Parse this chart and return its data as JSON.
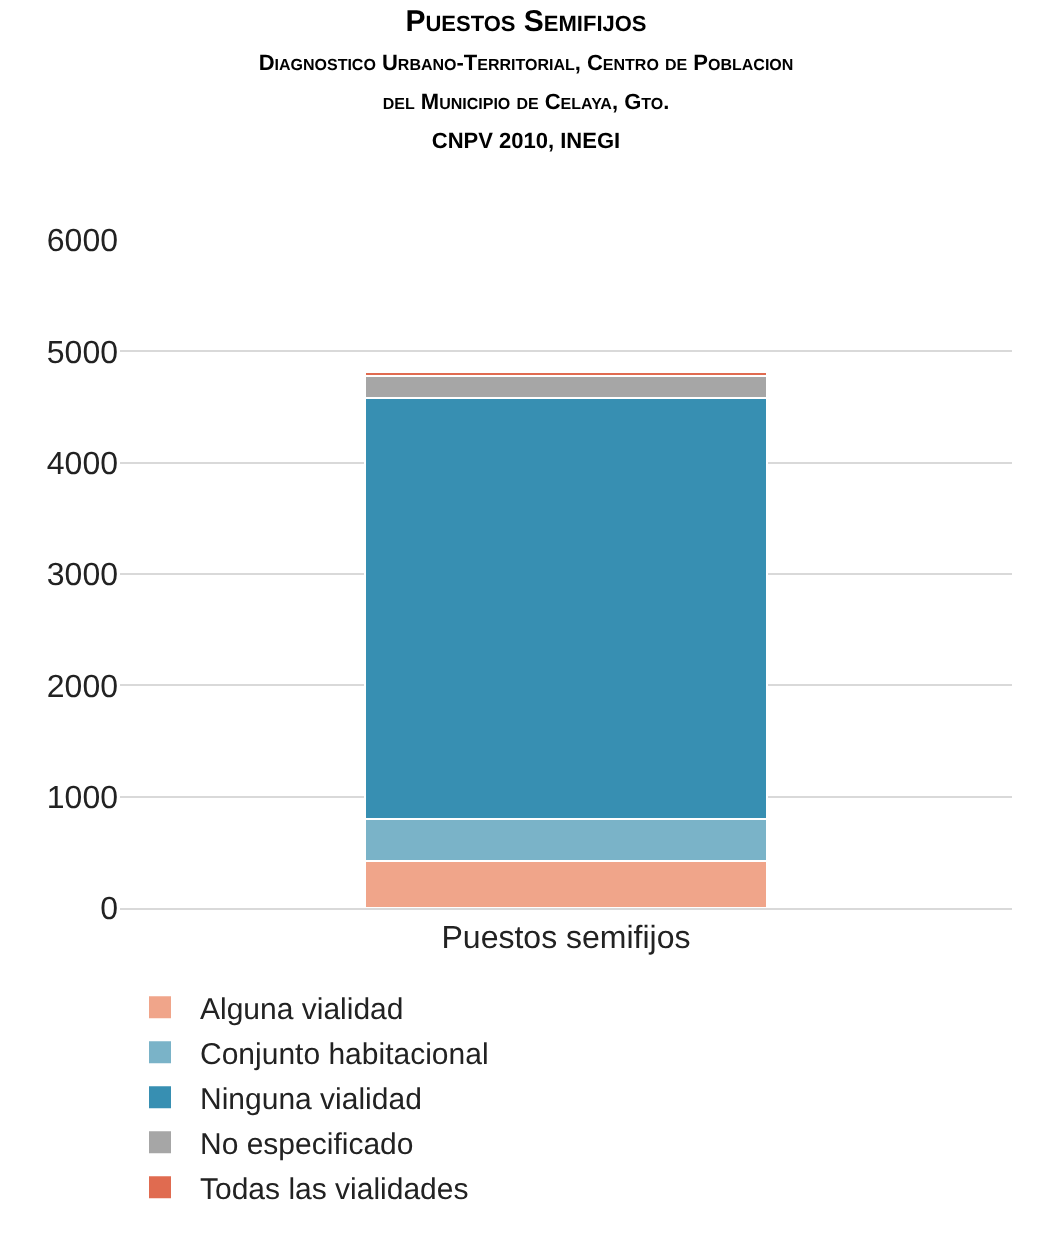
{
  "chart_data": {
    "type": "bar",
    "stacked": true,
    "title": "Puestos Semifijos",
    "subtitle": "Diagnostico Urbano-Territorial, Centro de Poblacion\ndel Municipio de Celaya, Gto.\nCNPV 2010, INEGI",
    "categories": [
      "Puestos semifijos"
    ],
    "series": [
      {
        "name": "Alguna vialidad",
        "color": "#f0a58a",
        "values": [
          420
        ]
      },
      {
        "name": "Conjunto habitacional",
        "color": "#7ab3c8",
        "values": [
          380
        ]
      },
      {
        "name": "Ninguna vialidad",
        "color": "#378fb2",
        "values": [
          3780
        ]
      },
      {
        "name": "No especificado",
        "color": "#a6a6a6",
        "values": [
          200
        ]
      },
      {
        "name": "Todas las vialidades",
        "color": "#e06b50",
        "values": [
          30
        ]
      }
    ],
    "ylim": [
      0,
      6000
    ],
    "yticks": [
      0,
      1000,
      2000,
      3000,
      4000,
      5000,
      6000
    ],
    "grid": "y",
    "legend": "bottom"
  }
}
